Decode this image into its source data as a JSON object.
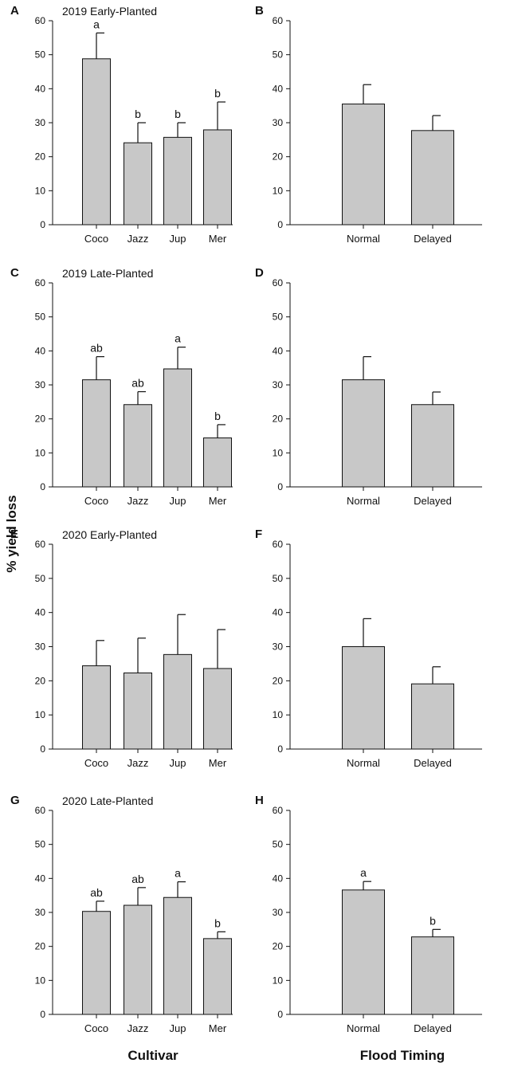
{
  "figure": {
    "ylabel": "% yield loss",
    "xlabel_left": "Cultivar",
    "xlabel_right": "Flood Timing",
    "colors": {
      "bar": "#c8c8c8",
      "stroke": "#111111"
    }
  },
  "chart_data": [
    {
      "panel": "A",
      "type": "bar",
      "title": "2019 Early-Planted",
      "ylim": [
        0,
        60
      ],
      "yticks": [
        0,
        10,
        20,
        30,
        40,
        50,
        60
      ],
      "categories": [
        "Coco",
        "Jazz",
        "Jup",
        "Mer"
      ],
      "values": [
        48.8,
        24.1,
        25.7,
        27.9
      ],
      "errors": [
        7.6,
        5.9,
        4.3,
        8.2
      ],
      "letters": [
        "a",
        "b",
        "b",
        "b"
      ]
    },
    {
      "panel": "B",
      "type": "bar",
      "title": "",
      "ylim": [
        0,
        60
      ],
      "yticks": [
        0,
        10,
        20,
        30,
        40,
        50,
        60
      ],
      "categories": [
        "Normal",
        "Delayed"
      ],
      "values": [
        35.5,
        27.7
      ],
      "errors": [
        5.7,
        4.4
      ],
      "letters": [
        "",
        ""
      ]
    },
    {
      "panel": "C",
      "type": "bar",
      "title": "2019 Late-Planted",
      "ylim": [
        0,
        60
      ],
      "yticks": [
        0,
        10,
        20,
        30,
        40,
        50,
        60
      ],
      "categories": [
        "Coco",
        "Jazz",
        "Jup",
        "Mer"
      ],
      "values": [
        31.5,
        24.2,
        34.7,
        14.4
      ],
      "errors": [
        6.8,
        3.8,
        6.4,
        3.9
      ],
      "letters": [
        "ab",
        "ab",
        "a",
        "b"
      ]
    },
    {
      "panel": "D",
      "type": "bar",
      "title": "",
      "ylim": [
        0,
        60
      ],
      "yticks": [
        0,
        10,
        20,
        30,
        40,
        50,
        60
      ],
      "categories": [
        "Normal",
        "Delayed"
      ],
      "values": [
        31.5,
        24.2
      ],
      "errors": [
        6.8,
        3.7
      ],
      "letters": [
        "",
        ""
      ]
    },
    {
      "panel": "E",
      "type": "bar",
      "title": "2020 Early-Planted",
      "ylim": [
        0,
        60
      ],
      "yticks": [
        0,
        10,
        20,
        30,
        40,
        50,
        60
      ],
      "categories": [
        "Coco",
        "Jazz",
        "Jup",
        "Mer"
      ],
      "values": [
        24.4,
        22.3,
        27.7,
        23.6
      ],
      "errors": [
        7.4,
        10.2,
        11.7,
        11.4
      ],
      "letters": [
        "",
        "",
        "",
        ""
      ]
    },
    {
      "panel": "F",
      "type": "bar",
      "title": "",
      "ylim": [
        0,
        60
      ],
      "yticks": [
        0,
        10,
        20,
        30,
        40,
        50,
        60
      ],
      "categories": [
        "Normal",
        "Delayed"
      ],
      "values": [
        30.0,
        19.1
      ],
      "errors": [
        8.2,
        5.0
      ],
      "letters": [
        "",
        ""
      ]
    },
    {
      "panel": "G",
      "type": "bar",
      "title": "2020 Late-Planted",
      "ylim": [
        0,
        60
      ],
      "yticks": [
        0,
        10,
        20,
        30,
        40,
        50,
        60
      ],
      "categories": [
        "Coco",
        "Jazz",
        "Jup",
        "Mer"
      ],
      "values": [
        30.3,
        32.1,
        34.4,
        22.3
      ],
      "errors": [
        3.0,
        5.2,
        4.6,
        2.0
      ],
      "letters": [
        "ab",
        "ab",
        "a",
        "b"
      ]
    },
    {
      "panel": "H",
      "type": "bar",
      "title": "",
      "ylim": [
        0,
        60
      ],
      "yticks": [
        0,
        10,
        20,
        30,
        40,
        50,
        60
      ],
      "categories": [
        "Normal",
        "Delayed"
      ],
      "values": [
        36.6,
        22.8
      ],
      "errors": [
        2.5,
        2.2
      ],
      "letters": [
        "a",
        "b"
      ]
    }
  ]
}
